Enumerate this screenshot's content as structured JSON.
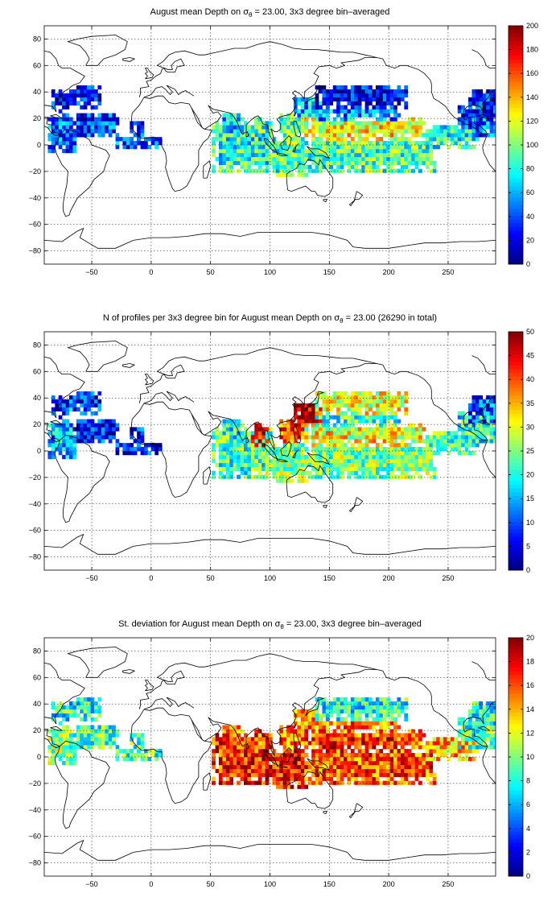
{
  "chart_data": [
    {
      "type": "heatmap",
      "title_prefix": "August mean Depth on",
      "title_symbol": "σ",
      "title_subscript": "θ",
      "title_suffix": " = 23.00, 3x3 degree bin–averaged",
      "xlim": [
        -90,
        290
      ],
      "ylim": [
        -90,
        90
      ],
      "xticks": [
        -50,
        0,
        50,
        100,
        150,
        200,
        250
      ],
      "yticks": [
        -80,
        -60,
        -40,
        -20,
        0,
        20,
        40,
        60,
        80
      ],
      "grid": true,
      "colormap": "jet",
      "cbar_range": [
        0,
        200
      ],
      "cbar_ticks": [
        0,
        20,
        40,
        60,
        80,
        100,
        120,
        140,
        160,
        180,
        200
      ],
      "regions": [
        {
          "lon": [
            -87,
            -63
          ],
          "lat": [
            -4,
            22
          ],
          "value": 45
        },
        {
          "lon": [
            -84,
            -60
          ],
          "lat": [
            25,
            40
          ],
          "value": 25
        },
        {
          "lon": [
            -66,
            -28
          ],
          "lat": [
            6,
            22
          ],
          "value": 35
        },
        {
          "lon": [
            -62,
            -42
          ],
          "lat": [
            28,
            45
          ],
          "value": 25
        },
        {
          "lon": [
            -30,
            8
          ],
          "lat": [
            -2,
            6
          ],
          "value": 40
        },
        {
          "lon": [
            -17,
            -8
          ],
          "lat": [
            2,
            18
          ],
          "value": 40
        },
        {
          "lon": [
            52,
            100
          ],
          "lat": [
            -20,
            16
          ],
          "value": 80
        },
        {
          "lon": [
            60,
            76
          ],
          "lat": [
            10,
            24
          ],
          "value": 70
        },
        {
          "lon": [
            84,
            98
          ],
          "lat": [
            4,
            20
          ],
          "value": 88
        },
        {
          "lon": [
            98,
            130
          ],
          "lat": [
            -22,
            6
          ],
          "value": 90
        },
        {
          "lon": [
            108,
            130
          ],
          "lat": [
            6,
            24
          ],
          "value": 95
        },
        {
          "lon": [
            122,
            145
          ],
          "lat": [
            18,
            34
          ],
          "value": 60
        },
        {
          "lon": [
            130,
            240
          ],
          "lat": [
            -20,
            4
          ],
          "value": 90
        },
        {
          "lon": [
            130,
            230
          ],
          "lat": [
            4,
            20
          ],
          "value": 118
        },
        {
          "lon": [
            140,
            215
          ],
          "lat": [
            8,
            15
          ],
          "value": 125
        },
        {
          "lon": [
            140,
            210
          ],
          "lat": [
            20,
            28
          ],
          "value": 55
        },
        {
          "lon": [
            140,
            215
          ],
          "lat": [
            28,
            44
          ],
          "value": 20
        },
        {
          "lon": [
            230,
            275
          ],
          "lat": [
            -2,
            15
          ],
          "value": 80
        },
        {
          "lon": [
            258,
            290
          ],
          "lat": [
            8,
            30
          ],
          "value": 45
        },
        {
          "lon": [
            268,
            290
          ],
          "lat": [
            22,
            40
          ],
          "value": 25
        }
      ]
    },
    {
      "type": "heatmap",
      "title_prefix": "N of profiles per 3x3 degree bin for August mean Depth on",
      "title_symbol": "σ",
      "title_subscript": "θ",
      "title_suffix": " = 23.00 (26290 in total)",
      "xlim": [
        -90,
        290
      ],
      "ylim": [
        -90,
        90
      ],
      "xticks": [
        -50,
        0,
        50,
        100,
        150,
        200,
        250
      ],
      "yticks": [
        -80,
        -60,
        -40,
        -20,
        0,
        20,
        40,
        60,
        80
      ],
      "grid": true,
      "colormap": "jet",
      "cbar_range": [
        0,
        50
      ],
      "cbar_ticks": [
        0,
        5,
        10,
        15,
        20,
        25,
        30,
        35,
        40,
        45,
        50
      ],
      "regions": [
        {
          "lon": [
            -87,
            -63
          ],
          "lat": [
            -4,
            22
          ],
          "value": 15
        },
        {
          "lon": [
            -84,
            -60
          ],
          "lat": [
            25,
            40
          ],
          "value": 10
        },
        {
          "lon": [
            -66,
            -28
          ],
          "lat": [
            6,
            22
          ],
          "value": 8
        },
        {
          "lon": [
            -62,
            -42
          ],
          "lat": [
            28,
            45
          ],
          "value": 8
        },
        {
          "lon": [
            -30,
            8
          ],
          "lat": [
            -2,
            6
          ],
          "value": 8
        },
        {
          "lon": [
            -17,
            -8
          ],
          "lat": [
            2,
            18
          ],
          "value": 8
        },
        {
          "lon": [
            52,
            100
          ],
          "lat": [
            -20,
            16
          ],
          "value": 22
        },
        {
          "lon": [
            60,
            76
          ],
          "lat": [
            10,
            24
          ],
          "value": 20
        },
        {
          "lon": [
            84,
            98
          ],
          "lat": [
            4,
            20
          ],
          "value": 45
        },
        {
          "lon": [
            98,
            130
          ],
          "lat": [
            -22,
            6
          ],
          "value": 25
        },
        {
          "lon": [
            108,
            130
          ],
          "lat": [
            6,
            24
          ],
          "value": 40
        },
        {
          "lon": [
            122,
            145
          ],
          "lat": [
            18,
            34
          ],
          "value": 48
        },
        {
          "lon": [
            130,
            240
          ],
          "lat": [
            -20,
            4
          ],
          "value": 25
        },
        {
          "lon": [
            130,
            230
          ],
          "lat": [
            4,
            20
          ],
          "value": 30
        },
        {
          "lon": [
            140,
            215
          ],
          "lat": [
            8,
            15
          ],
          "value": 32
        },
        {
          "lon": [
            140,
            210
          ],
          "lat": [
            20,
            28
          ],
          "value": 22
        },
        {
          "lon": [
            140,
            215
          ],
          "lat": [
            28,
            44
          ],
          "value": 30
        },
        {
          "lon": [
            230,
            275
          ],
          "lat": [
            -2,
            15
          ],
          "value": 22
        },
        {
          "lon": [
            258,
            290
          ],
          "lat": [
            8,
            30
          ],
          "value": 20
        },
        {
          "lon": [
            268,
            290
          ],
          "lat": [
            22,
            40
          ],
          "value": 10
        }
      ]
    },
    {
      "type": "heatmap",
      "title_prefix": "St. deviation for August mean Depth on",
      "title_symbol": "σ",
      "title_subscript": "θ",
      "title_suffix": " = 23.00, 3x3 degree bin–averaged",
      "xlim": [
        -90,
        290
      ],
      "ylim": [
        -90,
        90
      ],
      "xticks": [
        -50,
        0,
        50,
        100,
        150,
        200,
        250
      ],
      "yticks": [
        -80,
        -60,
        -40,
        -20,
        0,
        20,
        40,
        60,
        80
      ],
      "grid": true,
      "colormap": "jet",
      "cbar_range": [
        0,
        20
      ],
      "cbar_ticks": [
        0,
        2,
        4,
        6,
        8,
        10,
        12,
        14,
        16,
        18,
        20
      ],
      "regions": [
        {
          "lon": [
            -87,
            -63
          ],
          "lat": [
            -4,
            22
          ],
          "value": 10
        },
        {
          "lon": [
            -84,
            -60
          ],
          "lat": [
            25,
            40
          ],
          "value": 8
        },
        {
          "lon": [
            -66,
            -28
          ],
          "lat": [
            6,
            22
          ],
          "value": 9
        },
        {
          "lon": [
            -62,
            -42
          ],
          "lat": [
            28,
            45
          ],
          "value": 8
        },
        {
          "lon": [
            -30,
            8
          ],
          "lat": [
            -2,
            6
          ],
          "value": 9
        },
        {
          "lon": [
            -17,
            -8
          ],
          "lat": [
            2,
            18
          ],
          "value": 9
        },
        {
          "lon": [
            52,
            100
          ],
          "lat": [
            -20,
            16
          ],
          "value": 17
        },
        {
          "lon": [
            60,
            76
          ],
          "lat": [
            10,
            24
          ],
          "value": 15
        },
        {
          "lon": [
            84,
            98
          ],
          "lat": [
            4,
            20
          ],
          "value": 16
        },
        {
          "lon": [
            98,
            130
          ],
          "lat": [
            -22,
            6
          ],
          "value": 17
        },
        {
          "lon": [
            108,
            130
          ],
          "lat": [
            6,
            24
          ],
          "value": 15
        },
        {
          "lon": [
            122,
            145
          ],
          "lat": [
            18,
            34
          ],
          "value": 15
        },
        {
          "lon": [
            130,
            240
          ],
          "lat": [
            -20,
            4
          ],
          "value": 16
        },
        {
          "lon": [
            130,
            230
          ],
          "lat": [
            4,
            20
          ],
          "value": 16
        },
        {
          "lon": [
            140,
            215
          ],
          "lat": [
            8,
            15
          ],
          "value": 17
        },
        {
          "lon": [
            140,
            210
          ],
          "lat": [
            20,
            28
          ],
          "value": 15
        },
        {
          "lon": [
            140,
            215
          ],
          "lat": [
            28,
            44
          ],
          "value": 8
        },
        {
          "lon": [
            230,
            275
          ],
          "lat": [
            -2,
            15
          ],
          "value": 14
        },
        {
          "lon": [
            258,
            290
          ],
          "lat": [
            8,
            30
          ],
          "value": 9
        },
        {
          "lon": [
            268,
            290
          ],
          "lat": [
            22,
            40
          ],
          "value": 8
        }
      ]
    }
  ]
}
